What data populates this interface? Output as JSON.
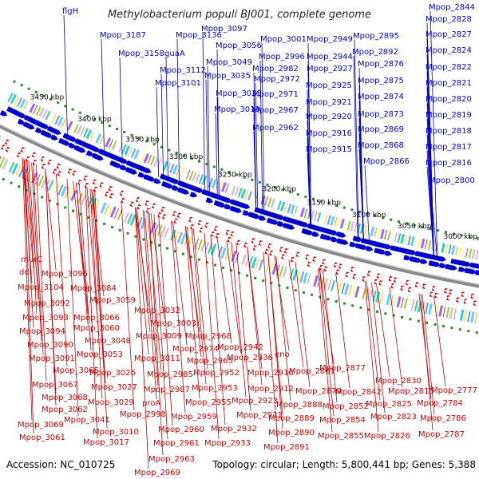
{
  "title": "Methylobacterium populi BJ001, complete genome",
  "accession": "Accession: NC_010725",
  "summary": "Topology: circular; Length: 5,800,441 bp; Genes: 5,388",
  "colors": {
    "forward": "#0000cc",
    "reverse": "#cc0000",
    "backbone": "#888888",
    "tick": "#2a8a2a"
  },
  "kbp_labels": [
    "3450 kbp",
    "3400 kbp",
    "3350 kbp",
    "3300 kbp",
    "3250 kbp",
    "3200 kbp",
    "3150 kbp",
    "3100 kbp",
    "3050 kbp",
    "3000 kbp"
  ],
  "forward_labels": [
    "flgH",
    "Mpop_3187",
    "Mpop_3136",
    "Mpop_3097",
    "Mpop_3158",
    "guaA",
    "Mpop_3056",
    "Mpop_3001",
    "Mpop_2949",
    "Mpop_2895",
    "Mpop_3049",
    "Mpop_2996",
    "Mpop_2944",
    "Mpop_2892",
    "Mpop_3112",
    "Mpop_2982",
    "Mpop_2927",
    "Mpop_2876",
    "Mpop_3035",
    "Mpop_2972",
    "Mpop_2925",
    "Mpop_2875",
    "Mpop_3101",
    "Mpop_3025",
    "Mpop_2971",
    "Mpop_2921",
    "Mpop_2874",
    "Mpop_3019",
    "Mpop_2967",
    "Mpop_2920",
    "Mpop_2873",
    "Mpop_2962",
    "Mpop_2916",
    "Mpop_2869",
    "Mpop_2915",
    "Mpop_2868",
    "Mpop_2866",
    "Mpop_2844",
    "Mpop_2828",
    "Mpop_2827",
    "Mpop_2824",
    "Mpop_2822",
    "Mpop_2821",
    "Mpop_2820",
    "Mpop_2819",
    "Mpop_2818",
    "Mpop_2817",
    "Mpop_2816",
    "Mpop_2800"
  ],
  "reverse_labels": [
    "murC",
    "ddl",
    "Mpop_3096",
    "Mpop_3104",
    "Mpop_3084",
    "Mpop_3092",
    "Mpop_3059",
    "Mpop_3093",
    "Mpop_3066",
    "Mpop_3032",
    "Mpop_3094",
    "Mpop_3060",
    "Mpop_3003",
    "Mpop_3090",
    "Mpop_3048",
    "Mpop_3009",
    "Mpop_2968",
    "Mpop_3091",
    "Mpop_3053",
    "Mpop_3011",
    "Mpop_2974",
    "Mpop_2942",
    "Mpop_3065",
    "Mpop_2965",
    "Mpop_2936",
    "eno",
    "Mpop_2877",
    "Mpop_3026",
    "Mpop_2985",
    "Mpop_2952",
    "Mpop_2910",
    "Mpop_2861",
    "Mpop_2830",
    "Mpop_3067",
    "Mpop_3027",
    "Mpop_2987",
    "Mpop_2953",
    "Mpop_2912",
    "Mpop_2879",
    "Mpop_2842",
    "Mpop_2815",
    "Mpop_2777",
    "Mpop_3068",
    "Mpop_3029",
    "Mpop_2923",
    "Mpop_2888",
    "Mpop_2852",
    "Mpop_2825",
    "Mpop_2784",
    "Mpop_3062",
    "proA",
    "Mpop_2955",
    "Mpop_2931",
    "Mpop_3041",
    "Mpop_2998",
    "Mpop_2959",
    "Mpop_2889",
    "Mpop_2854",
    "Mpop_2823",
    "Mpop_2786",
    "Mpop_3069",
    "Mpop_3010",
    "Mpop_2960",
    "Mpop_2932",
    "Mpop_2890",
    "Mpop_3061",
    "Mpop_3017",
    "Mpop_2961",
    "Mpop_2933",
    "Mpop_2891",
    "Mpop_2855",
    "Mpop_2826",
    "Mpop_2787",
    "Mpop_2963",
    "Mpop_2969"
  ]
}
